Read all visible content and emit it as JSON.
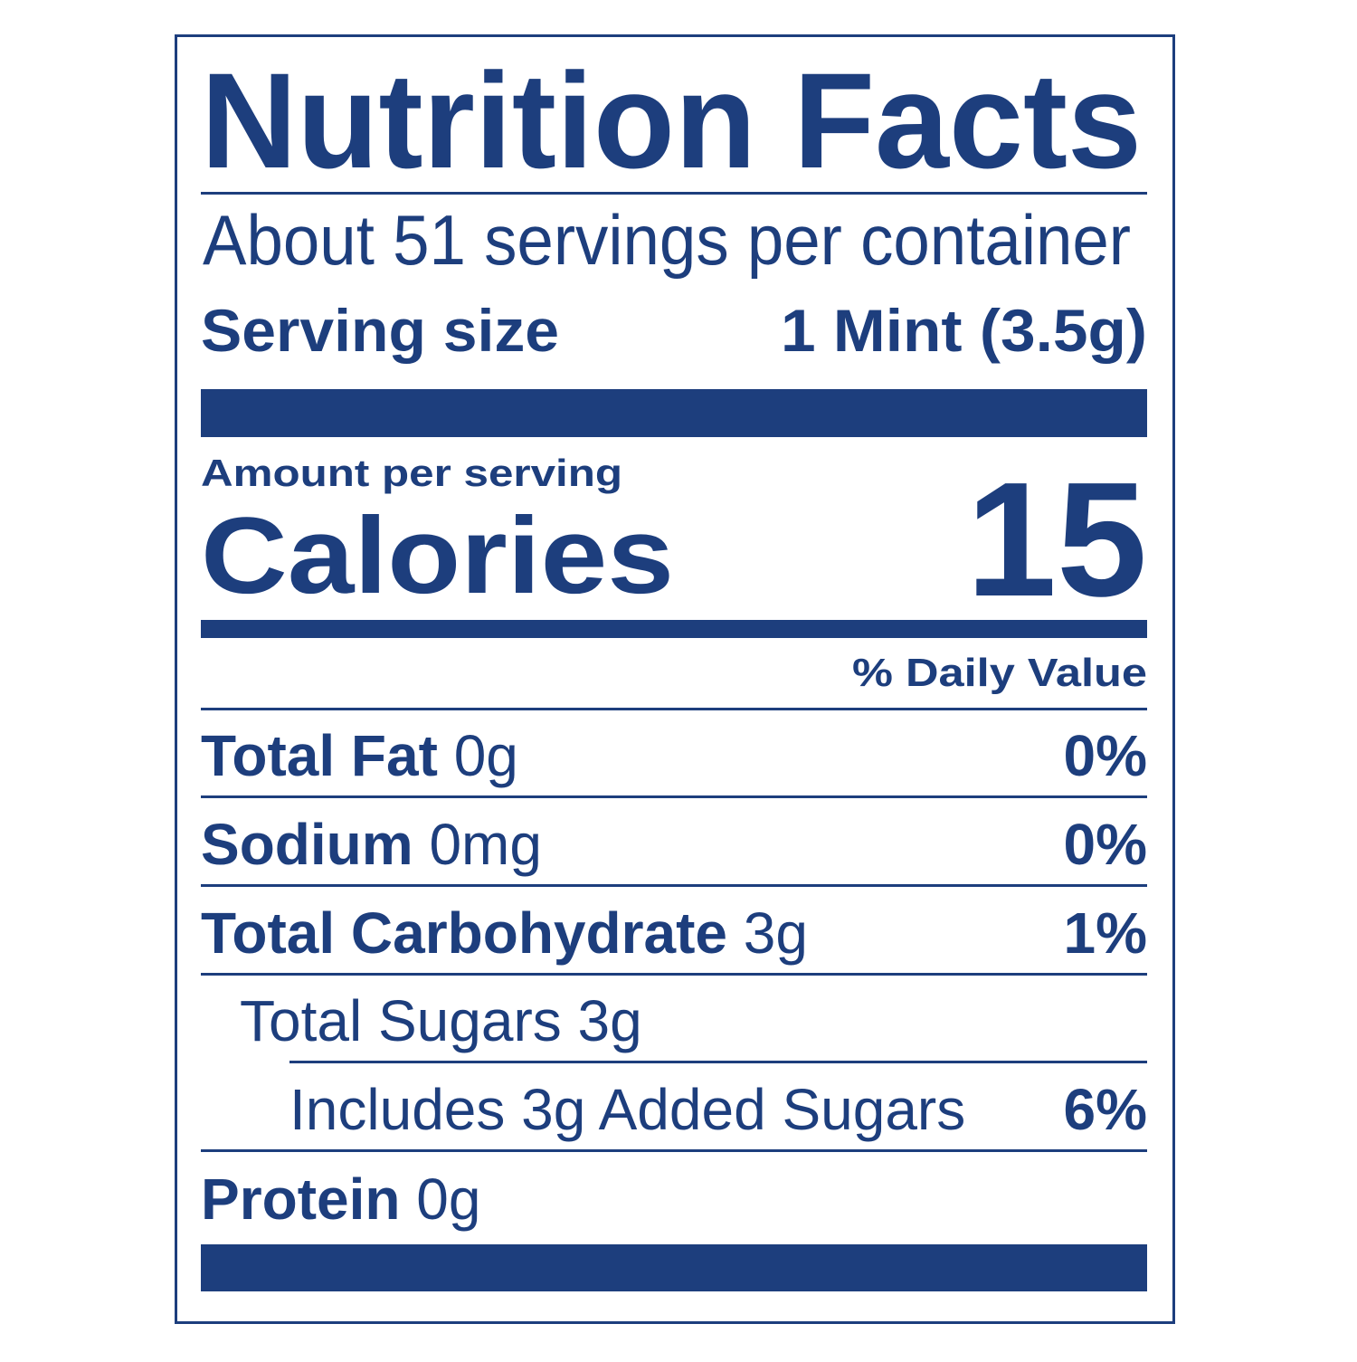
{
  "header": {
    "title": "Nutrition Facts",
    "servings": "About 51 servings per container",
    "serving_size_label": "Serving size",
    "serving_size_value": "1 Mint (3.5g)"
  },
  "calories": {
    "intro": "Amount per serving",
    "label": "Calories",
    "value": 15
  },
  "daily_value_header": "% Daily Value",
  "nutrients": [
    {
      "name": "Total Fat",
      "amount": "0g",
      "dv": "0%"
    },
    {
      "name": "Sodium",
      "amount": "0mg",
      "dv": "0%"
    },
    {
      "name": "Total Carbohydrate",
      "amount": "3g",
      "dv": "1%"
    },
    {
      "name": "Total Sugars",
      "amount": "3g"
    },
    {
      "name": "Includes 3g Added Sugars",
      "dv": "6%"
    },
    {
      "name": "Protein",
      "amount": "0g"
    }
  ]
}
